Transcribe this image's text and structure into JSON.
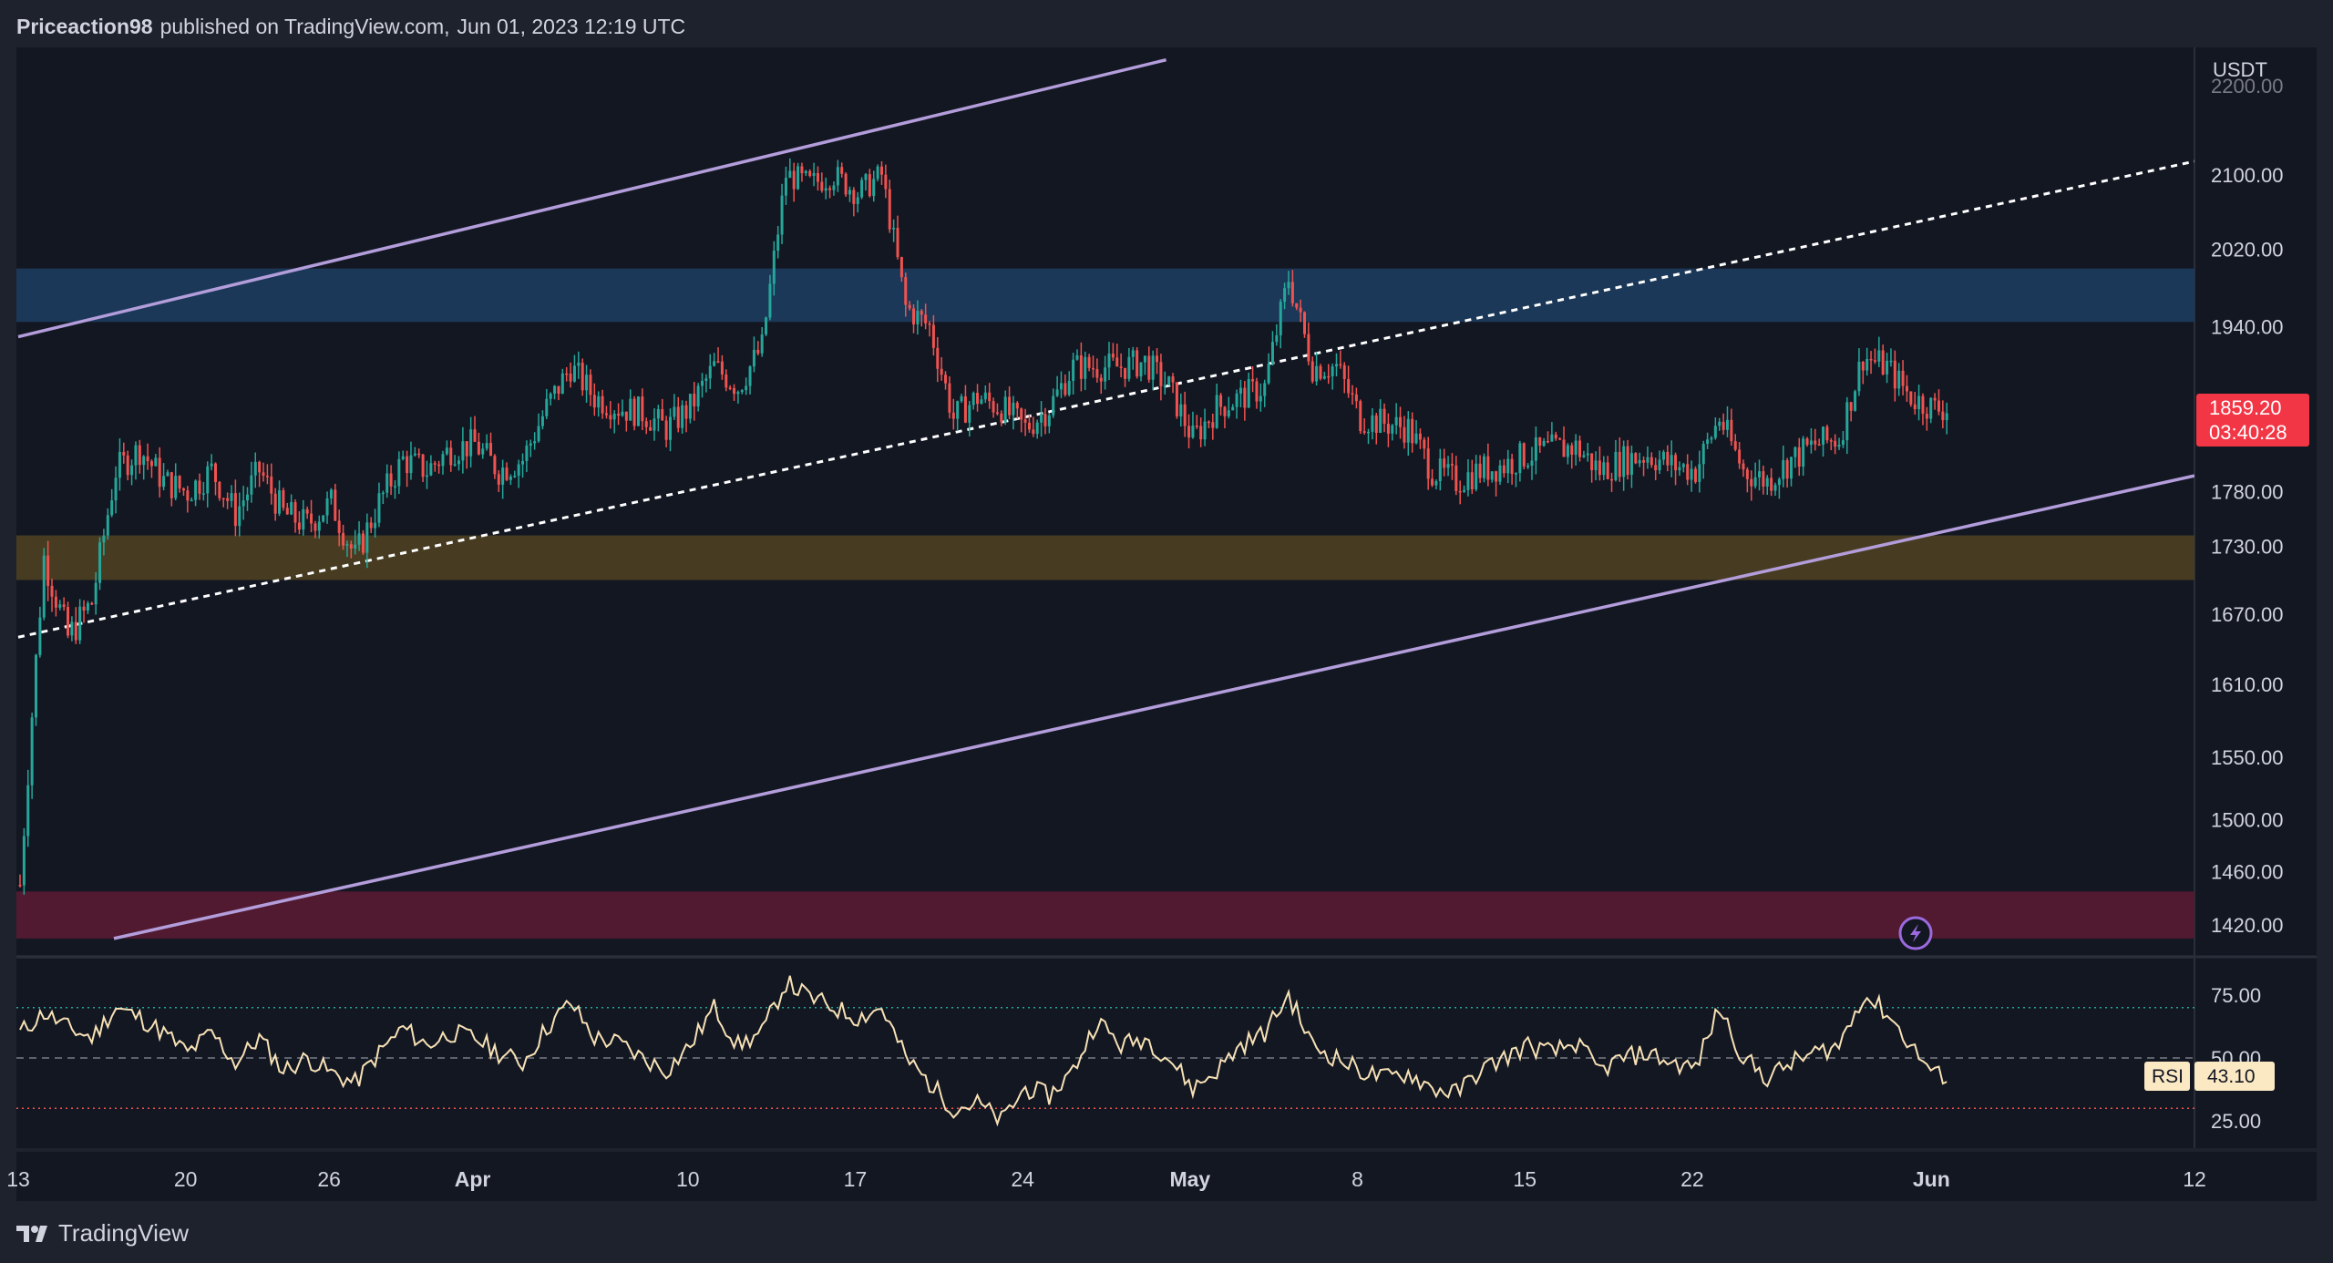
{
  "header": {
    "author": "Priceaction98",
    "published_text": "published on TradingView.com,",
    "timestamp": "Jun 01, 2023 12:19 UTC"
  },
  "footer": {
    "brand": "TradingView"
  },
  "colors": {
    "background": "#131722",
    "frame": "#1e222d",
    "candle_up": "#26a69a",
    "candle_down": "#ef5350",
    "channel_line": "#b39ddb",
    "midline": "#ffffff",
    "zone_blue": "#1b3a5c",
    "zone_yellow": "#4a3e22",
    "zone_red": "#541a33",
    "rsi_line": "#f7e1b5",
    "price_badge": "#f23645"
  },
  "chart_data": {
    "type": "candlestick",
    "symbol_quote": "USDT",
    "price_axis": {
      "currency": "USDT",
      "ticks": [
        {
          "value": 2100,
          "label": "2100.00"
        },
        {
          "value": 2020,
          "label": "2020.00"
        },
        {
          "value": 1940,
          "label": "1940.00"
        },
        {
          "value": 1780,
          "label": "1780.00"
        },
        {
          "value": 1730,
          "label": "1730.00"
        },
        {
          "value": 1670,
          "label": "1670.00"
        },
        {
          "value": 1610,
          "label": "1610.00"
        },
        {
          "value": 1550,
          "label": "1550.00"
        },
        {
          "value": 1500,
          "label": "1500.00"
        },
        {
          "value": 1460,
          "label": "1460.00"
        },
        {
          "value": 1420,
          "label": "1420.00"
        }
      ],
      "partial_top_label": "2200.00",
      "scale": "log"
    },
    "time_axis": {
      "start": "2023-03-13",
      "end": "2023-06-12",
      "labels": [
        {
          "date": "2023-03-13",
          "label": "13"
        },
        {
          "date": "2023-03-20",
          "label": "20"
        },
        {
          "date": "2023-03-26",
          "label": "26"
        },
        {
          "date": "2023-04-01",
          "label": "Apr"
        },
        {
          "date": "2023-04-10",
          "label": "10"
        },
        {
          "date": "2023-04-17",
          "label": "17"
        },
        {
          "date": "2023-04-24",
          "label": "24"
        },
        {
          "date": "2023-05-01",
          "label": "May"
        },
        {
          "date": "2023-05-08",
          "label": "8"
        },
        {
          "date": "2023-05-15",
          "label": "15"
        },
        {
          "date": "2023-05-22",
          "label": "22"
        },
        {
          "date": "2023-06-01",
          "label": "Jun"
        },
        {
          "date": "2023-06-12",
          "label": "12"
        }
      ]
    },
    "last_price": {
      "value": 1859.2,
      "label": "1859.20",
      "countdown": "03:40:28"
    },
    "price_path": [
      [
        "2023-03-13",
        1450
      ],
      [
        "2023-03-14",
        1720
      ],
      [
        "2023-03-15",
        1650
      ],
      [
        "2023-03-16",
        1680
      ],
      [
        "2023-03-17",
        1800
      ],
      [
        "2023-03-18",
        1820
      ],
      [
        "2023-03-19",
        1790
      ],
      [
        "2023-03-20",
        1780
      ],
      [
        "2023-03-21",
        1800
      ],
      [
        "2023-03-22",
        1760
      ],
      [
        "2023-03-23",
        1800
      ],
      [
        "2023-03-24",
        1760
      ],
      [
        "2023-03-25",
        1750
      ],
      [
        "2023-03-26",
        1770
      ],
      [
        "2023-03-27",
        1720
      ],
      [
        "2023-03-28",
        1770
      ],
      [
        "2023-03-29",
        1810
      ],
      [
        "2023-03-30",
        1800
      ],
      [
        "2023-03-31",
        1820
      ],
      [
        "2023-04-01",
        1825
      ],
      [
        "2023-04-02",
        1800
      ],
      [
        "2023-04-03",
        1810
      ],
      [
        "2023-04-04",
        1860
      ],
      [
        "2023-04-05",
        1900
      ],
      [
        "2023-04-06",
        1870
      ],
      [
        "2023-04-07",
        1860
      ],
      [
        "2023-04-08",
        1855
      ],
      [
        "2023-04-09",
        1840
      ],
      [
        "2023-04-10",
        1860
      ],
      [
        "2023-04-11",
        1900
      ],
      [
        "2023-04-12",
        1880
      ],
      [
        "2023-04-13",
        1920
      ],
      [
        "2023-04-14",
        2100
      ],
      [
        "2023-04-15",
        2090
      ],
      [
        "2023-04-16",
        2100
      ],
      [
        "2023-04-17",
        2080
      ],
      [
        "2023-04-18",
        2100
      ],
      [
        "2023-04-19",
        1960
      ],
      [
        "2023-04-20",
        1940
      ],
      [
        "2023-04-21",
        1850
      ],
      [
        "2023-04-22",
        1870
      ],
      [
        "2023-04-23",
        1860
      ],
      [
        "2023-04-24",
        1840
      ],
      [
        "2023-04-25",
        1860
      ],
      [
        "2023-04-26",
        1900
      ],
      [
        "2023-04-27",
        1900
      ],
      [
        "2023-04-28",
        1900
      ],
      [
        "2023-04-29",
        1905
      ],
      [
        "2023-04-30",
        1880
      ],
      [
        "2023-05-01",
        1830
      ],
      [
        "2023-05-02",
        1860
      ],
      [
        "2023-05-03",
        1870
      ],
      [
        "2023-05-04",
        1880
      ],
      [
        "2023-05-05",
        1990
      ],
      [
        "2023-05-06",
        1900
      ],
      [
        "2023-05-07",
        1900
      ],
      [
        "2023-05-08",
        1850
      ],
      [
        "2023-05-09",
        1845
      ],
      [
        "2023-05-10",
        1840
      ],
      [
        "2023-05-11",
        1800
      ],
      [
        "2023-05-12",
        1790
      ],
      [
        "2023-05-13",
        1800
      ],
      [
        "2023-05-14",
        1805
      ],
      [
        "2023-05-15",
        1815
      ],
      [
        "2023-05-16",
        1820
      ],
      [
        "2023-05-17",
        1822
      ],
      [
        "2023-05-18",
        1800
      ],
      [
        "2023-05-19",
        1810
      ],
      [
        "2023-05-20",
        1815
      ],
      [
        "2023-05-21",
        1805
      ],
      [
        "2023-05-22",
        1800
      ],
      [
        "2023-05-23",
        1850
      ],
      [
        "2023-05-24",
        1800
      ],
      [
        "2023-05-25",
        1790
      ],
      [
        "2023-05-26",
        1810
      ],
      [
        "2023-05-27",
        1825
      ],
      [
        "2023-05-28",
        1830
      ],
      [
        "2023-05-29",
        1910
      ],
      [
        "2023-05-30",
        1900
      ],
      [
        "2023-05-31",
        1870
      ],
      [
        "2023-06-01",
        1859.2
      ]
    ],
    "channel_lines": [
      {
        "name": "upper-channel",
        "style": "solid",
        "from": [
          "2023-03-13",
          1930
        ],
        "to": [
          "2023-04-30",
          2230
        ]
      },
      {
        "name": "midline",
        "style": "dashed",
        "from": [
          "2023-03-13",
          1650
        ],
        "to": [
          "2023-06-12",
          2115
        ]
      },
      {
        "name": "lower-channel",
        "style": "solid",
        "from": [
          "2023-03-17",
          1410
        ],
        "to": [
          "2023-06-12",
          1795
        ]
      }
    ],
    "zones": [
      {
        "name": "resistance-zone",
        "top": 2000,
        "bottom": 1945,
        "color": "#1b3a5c"
      },
      {
        "name": "support-zone",
        "top": 1740,
        "bottom": 1700,
        "color": "#4a3e22"
      },
      {
        "name": "demand-zone",
        "top": 1445,
        "bottom": 1410,
        "color": "#541a33"
      }
    ],
    "rsi": {
      "label": "RSI",
      "value": 43.1,
      "value_label": "43.10",
      "ticks": [
        {
          "value": 75,
          "label": "75.00"
        },
        {
          "value": 50,
          "label": "50.00"
        },
        {
          "value": 25,
          "label": "25.00"
        }
      ],
      "overbought": 70,
      "oversold": 30,
      "path": [
        [
          "2023-03-13",
          60
        ],
        [
          "2023-03-14",
          68
        ],
        [
          "2023-03-15",
          62
        ],
        [
          "2023-03-16",
          58
        ],
        [
          "2023-03-17",
          70
        ],
        [
          "2023-03-18",
          66
        ],
        [
          "2023-03-19",
          60
        ],
        [
          "2023-03-20",
          52
        ],
        [
          "2023-03-21",
          60
        ],
        [
          "2023-03-22",
          48
        ],
        [
          "2023-03-23",
          58
        ],
        [
          "2023-03-24",
          45
        ],
        [
          "2023-03-25",
          50
        ],
        [
          "2023-03-26",
          44
        ],
        [
          "2023-03-27",
          40
        ],
        [
          "2023-03-28",
          52
        ],
        [
          "2023-03-29",
          62
        ],
        [
          "2023-03-30",
          55
        ],
        [
          "2023-03-31",
          60
        ],
        [
          "2023-04-01",
          58
        ],
        [
          "2023-04-02",
          52
        ],
        [
          "2023-04-03",
          48
        ],
        [
          "2023-04-04",
          62
        ],
        [
          "2023-04-05",
          72
        ],
        [
          "2023-04-06",
          58
        ],
        [
          "2023-04-07",
          56
        ],
        [
          "2023-04-08",
          50
        ],
        [
          "2023-04-09",
          45
        ],
        [
          "2023-04-10",
          55
        ],
        [
          "2023-04-11",
          70
        ],
        [
          "2023-04-12",
          55
        ],
        [
          "2023-04-13",
          60
        ],
        [
          "2023-04-14",
          80
        ],
        [
          "2023-04-15",
          74
        ],
        [
          "2023-04-16",
          70
        ],
        [
          "2023-04-17",
          66
        ],
        [
          "2023-04-18",
          70
        ],
        [
          "2023-04-19",
          50
        ],
        [
          "2023-04-20",
          40
        ],
        [
          "2023-04-21",
          30
        ],
        [
          "2023-04-22",
          32
        ],
        [
          "2023-04-23",
          25
        ],
        [
          "2023-04-24",
          38
        ],
        [
          "2023-04-25",
          35
        ],
        [
          "2023-04-26",
          45
        ],
        [
          "2023-04-27",
          65
        ],
        [
          "2023-04-28",
          55
        ],
        [
          "2023-04-29",
          58
        ],
        [
          "2023-04-30",
          50
        ],
        [
          "2023-05-01",
          38
        ],
        [
          "2023-05-02",
          45
        ],
        [
          "2023-05-03",
          55
        ],
        [
          "2023-05-04",
          60
        ],
        [
          "2023-05-05",
          75
        ],
        [
          "2023-05-06",
          55
        ],
        [
          "2023-05-07",
          50
        ],
        [
          "2023-05-08",
          45
        ],
        [
          "2023-05-09",
          42
        ],
        [
          "2023-05-10",
          44
        ],
        [
          "2023-05-11",
          38
        ],
        [
          "2023-05-12",
          36
        ],
        [
          "2023-05-13",
          45
        ],
        [
          "2023-05-14",
          50
        ],
        [
          "2023-05-15",
          55
        ],
        [
          "2023-05-16",
          52
        ],
        [
          "2023-05-17",
          56
        ],
        [
          "2023-05-18",
          45
        ],
        [
          "2023-05-19",
          50
        ],
        [
          "2023-05-20",
          52
        ],
        [
          "2023-05-21",
          48
        ],
        [
          "2023-05-22",
          46
        ],
        [
          "2023-05-23",
          70
        ],
        [
          "2023-05-24",
          50
        ],
        [
          "2023-05-25",
          42
        ],
        [
          "2023-05-26",
          48
        ],
        [
          "2023-05-27",
          52
        ],
        [
          "2023-05-28",
          55
        ],
        [
          "2023-05-29",
          75
        ],
        [
          "2023-05-30",
          68
        ],
        [
          "2023-05-31",
          55
        ],
        [
          "2023-06-01",
          43.1
        ]
      ]
    }
  }
}
